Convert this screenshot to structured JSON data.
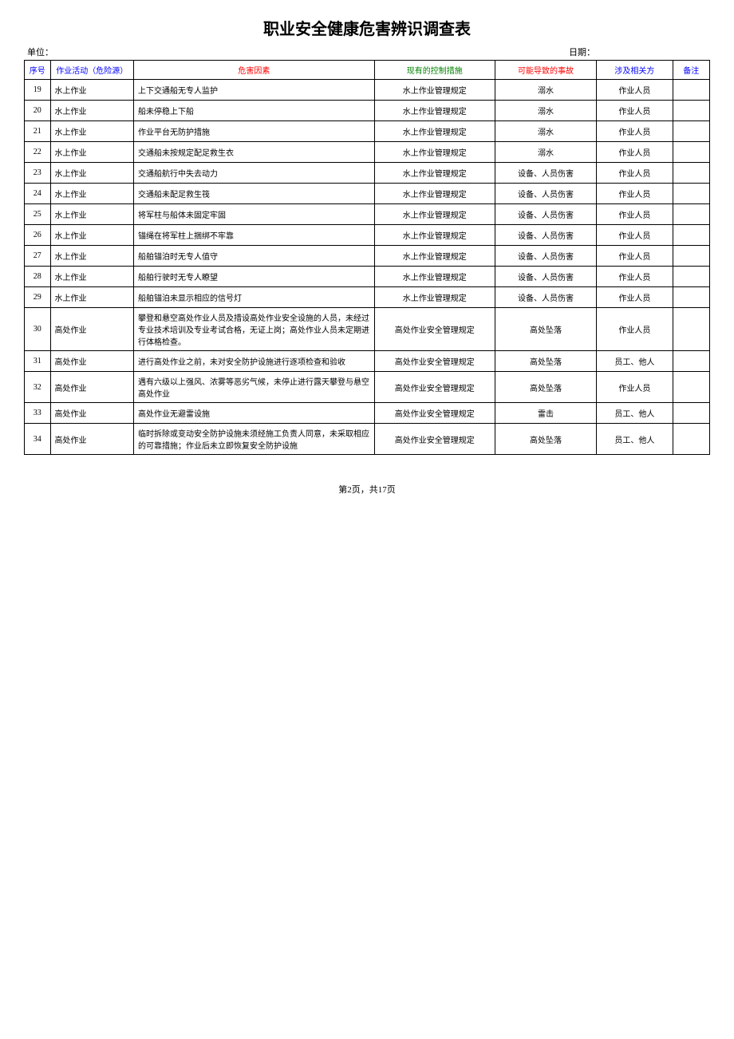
{
  "title": "职业安全健康危害辨识调查表",
  "meta": {
    "unit_label": "单位：",
    "date_label": "日期："
  },
  "headers": {
    "seq": "序号",
    "activity": "作业活动（危险源）",
    "hazard": "危害因素",
    "control": "现有的控制措施",
    "accident": "可能导致的事故",
    "party": "涉及相关方",
    "remark": "备注"
  },
  "header_colors": {
    "seq": "#0000ff",
    "activity": "#0000ff",
    "hazard": "#ff0000",
    "control": "#008000",
    "accident": "#ff0000",
    "party": "#0000ff",
    "remark": "#0000ff"
  },
  "rows": [
    {
      "seq": "19",
      "activity": "水上作业",
      "hazard": "上下交通船无专人监护",
      "control": "水上作业管理规定",
      "accident": "溺水",
      "party": "作业人员",
      "remark": ""
    },
    {
      "seq": "20",
      "activity": "水上作业",
      "hazard": "船未停稳上下船",
      "control": "水上作业管理规定",
      "accident": "溺水",
      "party": "作业人员",
      "remark": ""
    },
    {
      "seq": "21",
      "activity": "水上作业",
      "hazard": "作业平台无防护措施",
      "control": "水上作业管理规定",
      "accident": "溺水",
      "party": "作业人员",
      "remark": ""
    },
    {
      "seq": "22",
      "activity": "水上作业",
      "hazard": "交通船未按规定配足救生衣",
      "control": "水上作业管理规定",
      "accident": "溺水",
      "party": "作业人员",
      "remark": ""
    },
    {
      "seq": "23",
      "activity": "水上作业",
      "hazard": "交通船航行中失去动力",
      "control": "水上作业管理规定",
      "accident": "设备、人员伤害",
      "party": "作业人员",
      "remark": ""
    },
    {
      "seq": "24",
      "activity": "水上作业",
      "hazard": "交通船未配足救生筏",
      "control": "水上作业管理规定",
      "accident": "设备、人员伤害",
      "party": "作业人员",
      "remark": ""
    },
    {
      "seq": "25",
      "activity": "水上作业",
      "hazard": "将军柱与船体未固定牢固",
      "control": "水上作业管理规定",
      "accident": "设备、人员伤害",
      "party": "作业人员",
      "remark": ""
    },
    {
      "seq": "26",
      "activity": "水上作业",
      "hazard": "锚绳在将军柱上捆绑不牢靠",
      "control": "水上作业管理规定",
      "accident": "设备、人员伤害",
      "party": "作业人员",
      "remark": ""
    },
    {
      "seq": "27",
      "activity": "水上作业",
      "hazard": "船舶锚泊时无专人值守",
      "control": "水上作业管理规定",
      "accident": "设备、人员伤害",
      "party": "作业人员",
      "remark": ""
    },
    {
      "seq": "28",
      "activity": "水上作业",
      "hazard": "船舶行驶时无专人瞭望",
      "control": "水上作业管理规定",
      "accident": "设备、人员伤害",
      "party": "作业人员",
      "remark": ""
    },
    {
      "seq": "29",
      "activity": "水上作业",
      "hazard": "船舶锚泊未显示相应的信号灯",
      "control": "水上作业管理规定",
      "accident": "设备、人员伤害",
      "party": "作业人员",
      "remark": ""
    },
    {
      "seq": "30",
      "activity": "高处作业",
      "hazard": "攀登和悬空高处作业人员及措设高处作业安全设施的人员，未经过专业技术培训及专业考试合格，无证上岗；高处作业人员未定期进行体格检查。",
      "control": "高处作业安全管理规定",
      "accident": "高处坠落",
      "party": "作业人员",
      "remark": ""
    },
    {
      "seq": "31",
      "activity": "高处作业",
      "hazard": "进行高处作业之前，未对安全防护设施进行逐项检查和验收",
      "control": "高处作业安全管理规定",
      "accident": "高处坠落",
      "party": "员工、他人",
      "remark": ""
    },
    {
      "seq": "32",
      "activity": "高处作业",
      "hazard": "遇有六级以上强风、浓雾等恶劣气候，未停止进行露天攀登与悬空高处作业",
      "control": "高处作业安全管理规定",
      "accident": "高处坠落",
      "party": "作业人员",
      "remark": ""
    },
    {
      "seq": "33",
      "activity": "高处作业",
      "hazard": "高处作业无避雷设施",
      "control": "高处作业安全管理规定",
      "accident": "雷击",
      "party": "员工、他人",
      "remark": ""
    },
    {
      "seq": "34",
      "activity": "高处作业",
      "hazard": "临时拆除或变动安全防护设施未须经施工负责人同意，未采取相应的可靠措施；作业后未立即恢复安全防护设施",
      "control": "高处作业安全管理规定",
      "accident": "高处坠落",
      "party": "员工、他人",
      "remark": ""
    }
  ],
  "pagination": "第2页，共17页"
}
